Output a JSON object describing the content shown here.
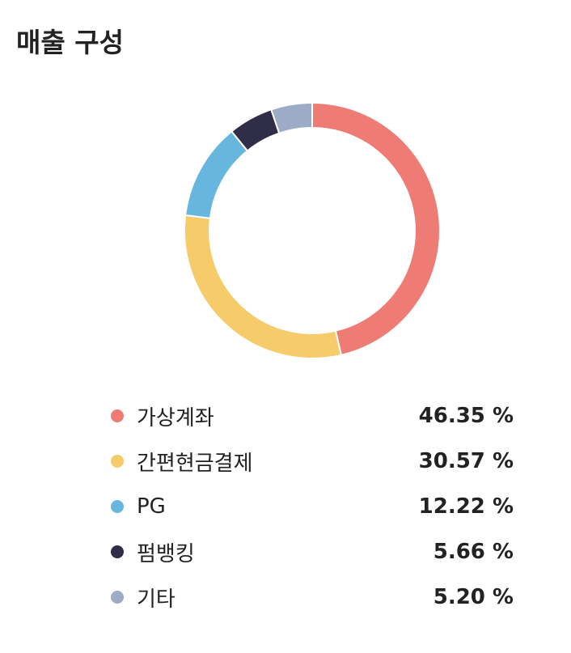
{
  "title": "매출 구성",
  "chart_data": {
    "type": "pie",
    "title": "매출 구성",
    "categories": [
      "가상계좌",
      "간편현금결제",
      "PG",
      "펌뱅킹",
      "기타"
    ],
    "values": [
      46.35,
      30.57,
      12.22,
      5.66,
      5.2
    ],
    "value_labels": [
      "46.35 %",
      "30.57 %",
      "12.22 %",
      "5.66 %",
      "5.20 %"
    ],
    "colors": [
      "#ef7b75",
      "#f6cb6a",
      "#67b6de",
      "#302d48",
      "#9eabc6"
    ],
    "donut": true,
    "legend_position": "bottom"
  }
}
